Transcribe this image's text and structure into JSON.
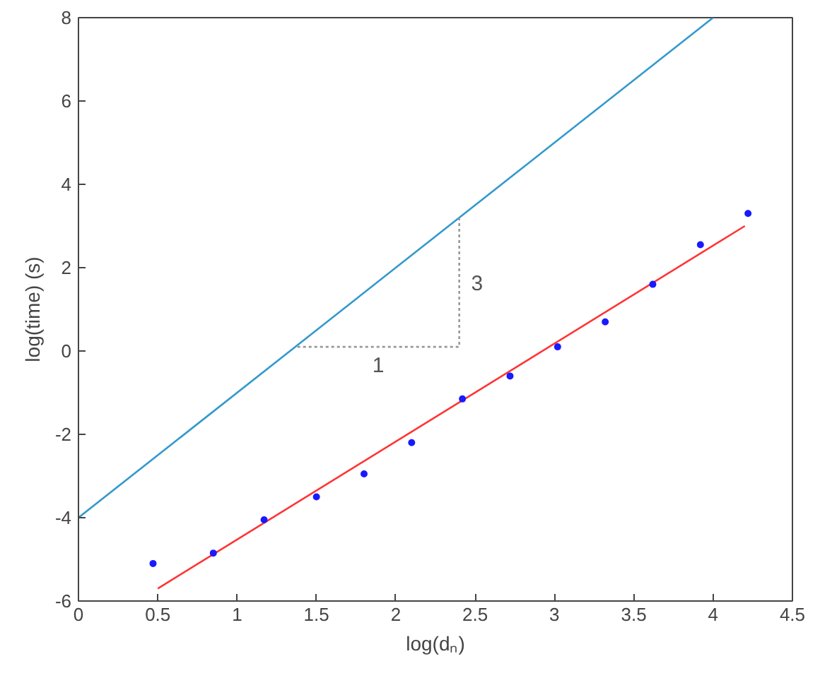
{
  "chart_data": {
    "type": "scatter",
    "xlabel": "log(dₙ)",
    "ylabel": "log(time) (s)",
    "xlim": [
      0,
      4.5
    ],
    "ylim": [
      -6,
      8
    ],
    "xticks": [
      0,
      0.5,
      1,
      1.5,
      2,
      2.5,
      3,
      3.5,
      4,
      4.5
    ],
    "yticks": [
      -6,
      -4,
      -2,
      0,
      2,
      4,
      6,
      8
    ],
    "grid": false,
    "series": [
      {
        "type": "line",
        "color": "#3399cc",
        "x": [
          0,
          4
        ],
        "values": [
          -4,
          8
        ],
        "line_style": "solid"
      },
      {
        "type": "line",
        "color": "#ff3333",
        "x": [
          0.5,
          4.2
        ],
        "values": [
          -5.7,
          3.0
        ],
        "line_style": "solid"
      },
      {
        "type": "line",
        "color": "#999999",
        "x": [
          1.38,
          2.4,
          2.4
        ],
        "values": [
          0.1,
          0.1,
          3.2
        ],
        "line_style": "dotted"
      },
      {
        "color": "#1a1aff",
        "x": [
          0.47,
          0.85,
          1.17,
          1.5,
          1.8,
          2.1,
          2.42,
          2.72,
          3.02,
          3.32,
          3.62,
          3.92,
          4.22
        ],
        "values": [
          -5.1,
          -4.85,
          -4.05,
          -3.5,
          -2.95,
          -2.2,
          -1.15,
          -0.6,
          0.1,
          0.7,
          1.6,
          2.55,
          3.3
        ],
        "marker": "circle"
      }
    ],
    "annotations": [
      "1",
      "3"
    ]
  }
}
